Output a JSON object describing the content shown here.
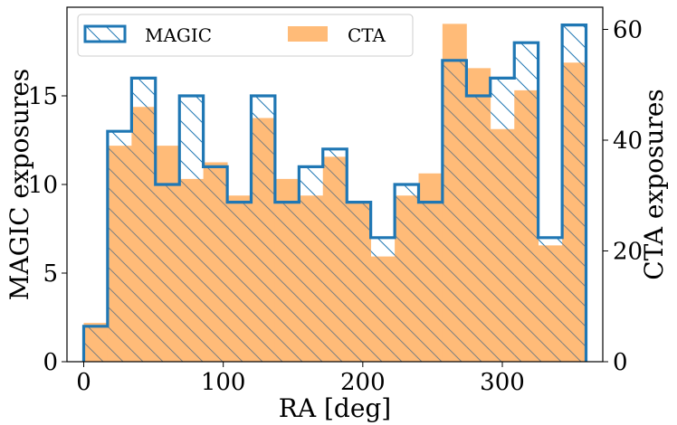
{
  "chart_data": {
    "type": "histogram",
    "bins": [
      0,
      17.1,
      34.3,
      51.4,
      68.6,
      85.7,
      102.9,
      120,
      137.1,
      154.3,
      171.4,
      188.6,
      205.7,
      222.9,
      240,
      257.1,
      274.3,
      291.4,
      308.6,
      325.7,
      342.9,
      360
    ],
    "xlabel": "RA [deg]",
    "xlim": [
      -12,
      372
    ],
    "xticks": [
      0,
      100,
      200,
      300
    ],
    "left_axis": {
      "ylabel": "MAGIC exposures",
      "ylim": [
        0,
        20
      ],
      "yticks": [
        0,
        5,
        10,
        15
      ]
    },
    "right_axis": {
      "ylabel": "CTA exposures",
      "ylim": [
        0,
        64
      ],
      "yticks": [
        0,
        20,
        40,
        60
      ]
    },
    "series": [
      {
        "name": "MAGIC",
        "style": "step-outline-hatched",
        "axis": "left",
        "color": "#1f77b4",
        "values": [
          2,
          13,
          16,
          10,
          15,
          11,
          9,
          15,
          9,
          11,
          12,
          9,
          7,
          10,
          9,
          17,
          15,
          16,
          18,
          7,
          19
        ]
      },
      {
        "name": "CTA",
        "style": "filled",
        "axis": "right",
        "color": "#ffbb78",
        "values": [
          7,
          39,
          46,
          39,
          33,
          36,
          30,
          44,
          33,
          30,
          37,
          29,
          19,
          30,
          34,
          61,
          53,
          42,
          49,
          21,
          54
        ]
      }
    ],
    "legend": {
      "placement": "top",
      "entries": [
        {
          "label": "MAGIC",
          "series": "MAGIC"
        },
        {
          "label": "CTA",
          "series": "CTA"
        }
      ]
    }
  }
}
